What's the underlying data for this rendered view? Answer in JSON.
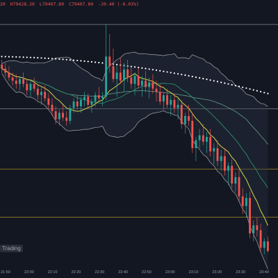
{
  "header": {
    "open": "20",
    "high": "H79428.20",
    "low": "L79407.80",
    "close": "C79407.80",
    "change": "-20.40 (-0.03%)"
  },
  "watermark": "Trading",
  "colors": {
    "background": "#131722",
    "up": "#26a69a",
    "down": "#ef5350",
    "bollinger": "#a7a9ad",
    "ma_short": "#d8d44a",
    "ma_mid": "#2f8f6d",
    "ma_long": "#5c8f82",
    "dots": "#ffffff",
    "hline_white": "#d1d4dc",
    "hline_yellow": "#c9a227"
  },
  "chart_data": {
    "type": "candlestick",
    "x_ticks": [
      "21:50",
      "22:00",
      "22:10",
      "22:20",
      "22:30",
      "22:40",
      "22:50",
      "23:00",
      "23:10",
      "23:20",
      "23:30",
      "23:40"
    ],
    "ylim": [
      79300,
      79620
    ],
    "horizontal_lines": [
      {
        "price": 79600,
        "color": "white"
      },
      {
        "price": 79495,
        "color": "white"
      },
      {
        "price": 79420,
        "color": "yellow"
      },
      {
        "price": 79360,
        "color": "yellow"
      }
    ],
    "candles": [
      [
        79550,
        79556,
        79540,
        79545
      ],
      [
        79545,
        79552,
        79535,
        79540
      ],
      [
        79540,
        79548,
        79530,
        79534
      ],
      [
        79534,
        79540,
        79524,
        79530
      ],
      [
        79530,
        79538,
        79520,
        79526
      ],
      [
        79526,
        79535,
        79518,
        79532
      ],
      [
        79532,
        79540,
        79522,
        79526
      ],
      [
        79526,
        79532,
        79512,
        79518
      ],
      [
        79518,
        79530,
        79510,
        79526
      ],
      [
        79526,
        79534,
        79516,
        79520
      ],
      [
        79520,
        79526,
        79506,
        79512
      ],
      [
        79512,
        79522,
        79500,
        79516
      ],
      [
        79516,
        79524,
        79504,
        79508
      ],
      [
        79508,
        79514,
        79494,
        79500
      ],
      [
        79500,
        79508,
        79486,
        79492
      ],
      [
        79492,
        79498,
        79476,
        79482
      ],
      [
        79482,
        79494,
        79474,
        79490
      ],
      [
        79490,
        79500,
        79480,
        79484
      ],
      [
        79484,
        79492,
        79474,
        79480
      ],
      [
        79480,
        79500,
        79476,
        79496
      ],
      [
        79496,
        79508,
        79490,
        79504
      ],
      [
        79504,
        79512,
        79494,
        79498
      ],
      [
        79498,
        79510,
        79490,
        79506
      ],
      [
        79506,
        79516,
        79498,
        79510
      ],
      [
        79510,
        79514,
        79496,
        79500
      ],
      [
        79500,
        79508,
        79490,
        79504
      ],
      [
        79504,
        79516,
        79498,
        79512
      ],
      [
        79512,
        79522,
        79504,
        79508
      ],
      [
        79508,
        79516,
        79498,
        79510
      ],
      [
        79510,
        79600,
        79506,
        79560
      ],
      [
        79560,
        79588,
        79540,
        79548
      ],
      [
        79548,
        79570,
        79528,
        79532
      ],
      [
        79532,
        79548,
        79510,
        79540
      ],
      [
        79540,
        79558,
        79526,
        79530
      ],
      [
        79530,
        79552,
        79516,
        79544
      ],
      [
        79544,
        79556,
        79528,
        79534
      ],
      [
        79534,
        79546,
        79520,
        79526
      ],
      [
        79526,
        79540,
        79512,
        79536
      ],
      [
        79536,
        79546,
        79520,
        79524
      ],
      [
        79524,
        79536,
        79510,
        79530
      ],
      [
        79530,
        79542,
        79516,
        79522
      ],
      [
        79522,
        79534,
        79508,
        79528
      ],
      [
        79528,
        79538,
        79514,
        79520
      ],
      [
        79520,
        79530,
        79504,
        79516
      ],
      [
        79516,
        79526,
        79500,
        79504
      ],
      [
        79504,
        79516,
        79494,
        79512
      ],
      [
        79512,
        79520,
        79496,
        79500
      ],
      [
        79500,
        79512,
        79486,
        79506
      ],
      [
        79506,
        79514,
        79490,
        79496
      ],
      [
        79496,
        79508,
        79482,
        79500
      ],
      [
        79500,
        79506,
        79470,
        79476
      ],
      [
        79476,
        79490,
        79464,
        79486
      ],
      [
        79486,
        79500,
        79474,
        79480
      ],
      [
        79480,
        79490,
        79440,
        79446
      ],
      [
        79446,
        79460,
        79430,
        79456
      ],
      [
        79456,
        79470,
        79446,
        79462
      ],
      [
        79462,
        79476,
        79450,
        79454
      ],
      [
        79454,
        79466,
        79440,
        79460
      ],
      [
        79460,
        79470,
        79436,
        79442
      ],
      [
        79442,
        79452,
        79426,
        79446
      ],
      [
        79446,
        79456,
        79424,
        79430
      ],
      [
        79430,
        79444,
        79418,
        79436
      ],
      [
        79436,
        79446,
        79412,
        79418
      ],
      [
        79418,
        79428,
        79400,
        79424
      ],
      [
        79424,
        79432,
        79396,
        79402
      ],
      [
        79402,
        79416,
        79392,
        79410
      ],
      [
        79410,
        79420,
        79380,
        79386
      ],
      [
        79386,
        79396,
        79364,
        79374
      ],
      [
        79374,
        79390,
        79360,
        79384
      ],
      [
        79384,
        79392,
        79334,
        79340
      ],
      [
        79340,
        79356,
        79330,
        79350
      ],
      [
        79350,
        79360,
        79336,
        79344
      ],
      [
        79344,
        79352,
        79316,
        79322
      ],
      [
        79322,
        79334,
        79314,
        79330
      ],
      [
        79330,
        79336,
        79316,
        79318
      ]
    ]
  }
}
